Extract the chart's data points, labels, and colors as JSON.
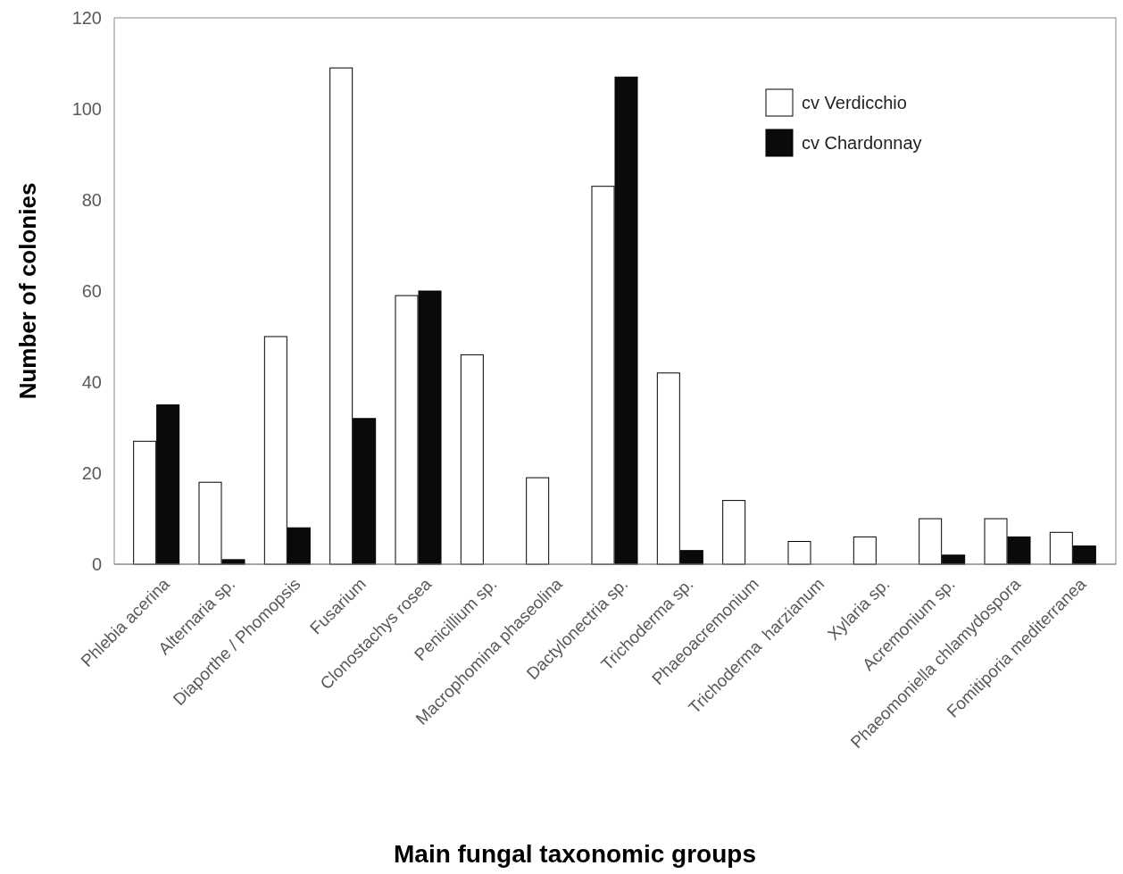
{
  "chart_data": {
    "type": "bar",
    "xlabel": "Main fungal taxonomic groups",
    "ylabel": "Number of colonies",
    "categories": [
      "Phlebia acerina",
      "Alternaria sp.",
      "Diaporthe / Phomopsis",
      "Fusarium",
      "Clonostachys rosea",
      "Penicillium sp.",
      "Macrophomina phaseolina",
      "Dactylonectria sp.",
      "Trichoderma sp.",
      "Phaeoacremonium",
      "Trichoderma  harzianum",
      "Xylaria sp.",
      "Acremonium sp.",
      "Phaeomoniella chlamydospora",
      "Fomitiporia mediterranea"
    ],
    "series": [
      {
        "name": "cv Verdicchio",
        "color": "#ffffff",
        "values": [
          27,
          18,
          50,
          109,
          59,
          46,
          19,
          83,
          42,
          14,
          5,
          6,
          10,
          10,
          7
        ]
      },
      {
        "name": "cv Chardonnay",
        "color": "#0a0a0a",
        "values": [
          35,
          1,
          8,
          32,
          60,
          0,
          0,
          107,
          3,
          0,
          0,
          0,
          2,
          6,
          4
        ]
      }
    ],
    "ylim": [
      0,
      120
    ],
    "yticks": [
      0,
      20,
      40,
      60,
      80,
      100,
      120
    ],
    "grid": false,
    "legend": "top right"
  }
}
